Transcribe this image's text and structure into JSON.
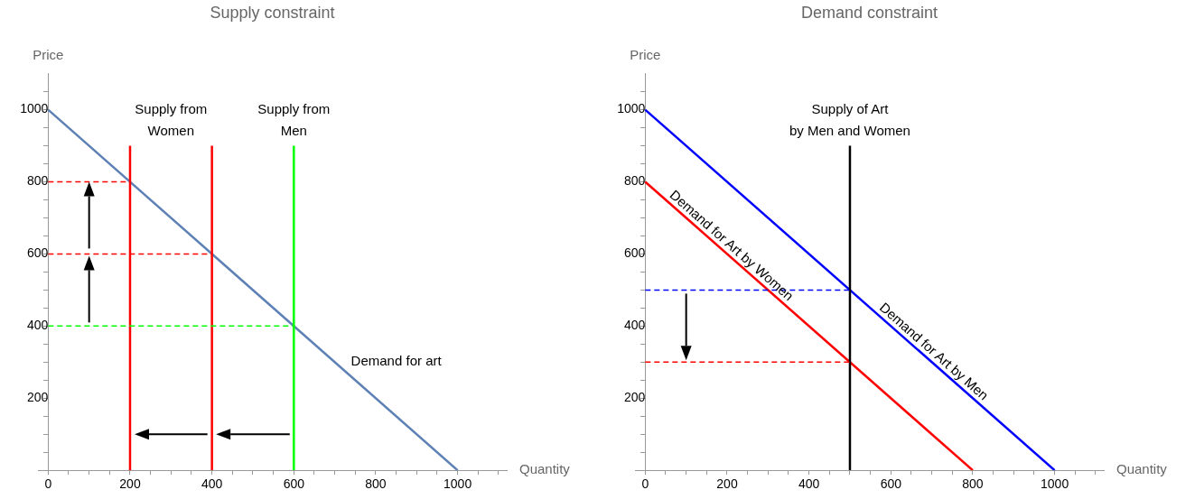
{
  "chart_data": [
    {
      "type": "line",
      "title": "Supply constraint",
      "xlabel": "Quantity",
      "ylabel": "Price",
      "xlim": [
        -25,
        1120
      ],
      "ylim": [
        0,
        1100
      ],
      "xticks": [
        0,
        {
          "value": 50,
          "label": null
        },
        {
          "value": 100,
          "label": null
        },
        {
          "value": 150,
          "label": null
        },
        200,
        {
          "value": 250,
          "label": null
        },
        {
          "value": 300,
          "label": null
        },
        {
          "value": 350,
          "label": null
        },
        400,
        {
          "value": 450,
          "label": null
        },
        {
          "value": 500,
          "label": null
        },
        {
          "value": 550,
          "label": null
        },
        600,
        {
          "value": 650,
          "label": null
        },
        {
          "value": 700,
          "label": null
        },
        {
          "value": 750,
          "label": null
        },
        800,
        {
          "value": 850,
          "label": null
        },
        {
          "value": 900,
          "label": null
        },
        {
          "value": 950,
          "label": null
        },
        1000,
        {
          "value": 1050,
          "label": null
        },
        {
          "value": 1100,
          "label": null
        }
      ],
      "yticks": [
        {
          "value": 50,
          "label": null
        },
        {
          "value": 100,
          "label": null
        },
        {
          "value": 150,
          "label": null
        },
        200,
        {
          "value": 250,
          "label": null
        },
        {
          "value": 300,
          "label": null
        },
        {
          "value": 350,
          "label": null
        },
        400,
        {
          "value": 450,
          "label": null
        },
        {
          "value": 500,
          "label": null
        },
        {
          "value": 550,
          "label": null
        },
        600,
        {
          "value": 650,
          "label": null
        },
        {
          "value": 700,
          "label": null
        },
        {
          "value": 750,
          "label": null
        },
        800,
        {
          "value": 850,
          "label": null
        },
        {
          "value": 900,
          "label": null
        },
        {
          "value": 950,
          "label": null
        },
        1000,
        {
          "value": 1050,
          "label": null
        }
      ],
      "grid": false,
      "legend": false,
      "series": [
        {
          "x": [
            0,
            200
          ],
          "values": [
            800,
            800
          ],
          "color": "#ff0000",
          "line_style": "dashed"
        },
        {
          "x": [
            0,
            400
          ],
          "values": [
            600,
            600
          ],
          "color": "#ff0000",
          "line_style": "dashed"
        },
        {
          "x": [
            0,
            600
          ],
          "values": [
            400,
            400
          ],
          "color": "#00ff00",
          "line_style": "dashed"
        },
        {
          "x": [
            200,
            200
          ],
          "values": [
            0,
            900
          ],
          "color": "#ff0000"
        },
        {
          "x": [
            400,
            400
          ],
          "values": [
            0,
            900
          ],
          "color": "#ff0000"
        },
        {
          "x": [
            600,
            600
          ],
          "values": [
            0,
            900
          ],
          "color": "#00ff00"
        },
        {
          "x": [
            0,
            1000
          ],
          "values": [
            1000,
            0
          ],
          "color": "#5e81b5"
        }
      ],
      "annotations": [
        "Supply from\nWomen",
        "Supply from\nMen",
        "Demand for art"
      ]
    },
    {
      "type": "line",
      "title": "Demand constraint",
      "xlabel": "Quantity",
      "ylabel": "Price",
      "xlim": [
        -25,
        1120
      ],
      "ylim": [
        0,
        1100
      ],
      "xticks": [
        0,
        {
          "value": 50,
          "label": null
        },
        {
          "value": 100,
          "label": null
        },
        {
          "value": 150,
          "label": null
        },
        200,
        {
          "value": 250,
          "label": null
        },
        {
          "value": 300,
          "label": null
        },
        {
          "value": 350,
          "label": null
        },
        400,
        {
          "value": 450,
          "label": null
        },
        {
          "value": 500,
          "label": null
        },
        {
          "value": 550,
          "label": null
        },
        600,
        {
          "value": 650,
          "label": null
        },
        {
          "value": 700,
          "label": null
        },
        {
          "value": 750,
          "label": null
        },
        800,
        {
          "value": 850,
          "label": null
        },
        {
          "value": 900,
          "label": null
        },
        {
          "value": 950,
          "label": null
        },
        1000,
        {
          "value": 1050,
          "label": null
        },
        {
          "value": 1100,
          "label": null
        }
      ],
      "yticks": [
        {
          "value": 50,
          "label": null
        },
        {
          "value": 100,
          "label": null
        },
        {
          "value": 150,
          "label": null
        },
        200,
        {
          "value": 250,
          "label": null
        },
        {
          "value": 300,
          "label": null
        },
        {
          "value": 350,
          "label": null
        },
        400,
        {
          "value": 450,
          "label": null
        },
        {
          "value": 500,
          "label": null
        },
        {
          "value": 550,
          "label": null
        },
        600,
        {
          "value": 650,
          "label": null
        },
        {
          "value": 700,
          "label": null
        },
        {
          "value": 750,
          "label": null
        },
        800,
        {
          "value": 850,
          "label": null
        },
        {
          "value": 900,
          "label": null
        },
        {
          "value": 950,
          "label": null
        },
        1000,
        {
          "value": 1050,
          "label": null
        }
      ],
      "grid": false,
      "legend": false,
      "series": [
        {
          "x": [
            0,
            500
          ],
          "values": [
            500,
            500
          ],
          "color": "#0000ff",
          "line_style": "dashed"
        },
        {
          "x": [
            0,
            500
          ],
          "values": [
            300,
            300
          ],
          "color": "#ff0000",
          "line_style": "dashed"
        },
        {
          "x": [
            500,
            500
          ],
          "values": [
            0,
            900
          ],
          "color": "#000000"
        },
        {
          "x": [
            0,
            1000
          ],
          "values": [
            1000,
            0
          ],
          "color": "#0000ff"
        },
        {
          "x": [
            0,
            800
          ],
          "values": [
            800,
            0
          ],
          "color": "#ff0000"
        }
      ],
      "annotations": [
        "Supply of Art\nby Men and Women",
        {
          "text": "Demand for Art by Women",
          "x": 196,
          "y": 604
        },
        {
          "text": "Demand for Art by Men",
          "x": 690,
          "y": 310
        }
      ]
    }
  ]
}
